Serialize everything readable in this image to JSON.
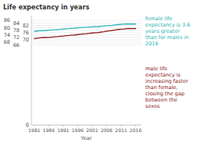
{
  "chart_data": {
    "type": "line",
    "title": "Life expectancy in years",
    "xlabel": "Year",
    "x": [
      1981,
      1982,
      1983,
      1984,
      1985,
      1986,
      1987,
      1988,
      1989,
      1990,
      1991,
      1992,
      1993,
      1994,
      1995,
      1996,
      1997,
      1998,
      1999,
      2000,
      2001,
      2002,
      2003,
      2004,
      2005,
      2006,
      2007,
      2008,
      2009,
      2010,
      2011,
      2012,
      2013,
      2014,
      2015,
      2016
    ],
    "series": [
      {
        "color": "#2ab5b5",
        "values": [
          77.0,
          77.3,
          77.5,
          77.6,
          77.8,
          78.0,
          78.2,
          78.3,
          78.5,
          78.7,
          79.0,
          79.2,
          79.3,
          79.6,
          79.7,
          79.9,
          80.1,
          80.3,
          80.4,
          80.6,
          80.7,
          80.9,
          81.0,
          81.3,
          81.4,
          81.7,
          81.9,
          82.1,
          82.4,
          82.6,
          82.8,
          83.0,
          83.1,
          83.2,
          83.1,
          83.1
        ]
      },
      {
        "color": "#8b1a1a",
        "values": [
          71.1,
          71.5,
          71.8,
          72.0,
          72.0,
          72.1,
          72.3,
          72.5,
          72.7,
          73.0,
          73.2,
          73.5,
          73.7,
          74.0,
          74.1,
          74.4,
          74.7,
          75.0,
          75.1,
          75.5,
          75.7,
          75.9,
          76.0,
          76.5,
          76.8,
          77.2,
          77.5,
          77.8,
          78.2,
          78.6,
          78.8,
          79.0,
          79.3,
          79.4,
          79.3,
          79.4
        ]
      }
    ],
    "annotations": [
      "female life\nexpectancy is 3.6\nyears greater\nthan for males in\n2016",
      "male life\nexpectancy is\nincreasing faster\nthan female,\nclosing the gap\nbetween the\nsexes"
    ],
    "xlim": [
      1980,
      2018
    ],
    "xticks": [
      1981,
      1986,
      1991,
      1996,
      2001,
      2006,
      2011,
      2016
    ],
    "ylim": [
      0,
      90
    ],
    "yticks": [
      0,
      66,
      68,
      70,
      72,
      74,
      76,
      78,
      80,
      82,
      84,
      86
    ],
    "grid": true
  }
}
